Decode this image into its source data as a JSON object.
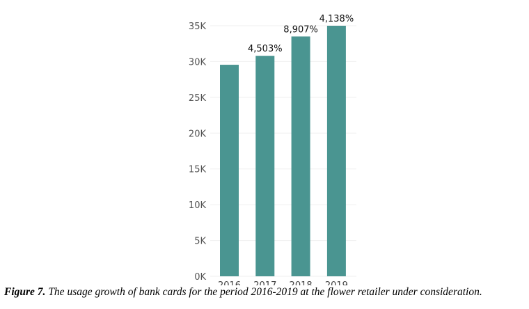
{
  "chart_data": {
    "type": "bar",
    "title": "",
    "xlabel": "",
    "ylabel": "",
    "categories": [
      "2016",
      "2017",
      "2018",
      "2019"
    ],
    "values": [
      29550,
      30800,
      33500,
      35000
    ],
    "data_labels": [
      "",
      "4,503%",
      "8,907%",
      "4,138%"
    ],
    "ylim": [
      0,
      35000
    ],
    "yticks": [
      0,
      5000,
      10000,
      15000,
      20000,
      25000,
      30000,
      35000
    ],
    "ytick_labels": [
      "0K",
      "5K",
      "10K",
      "15K",
      "20K",
      "25K",
      "30K",
      "35K"
    ],
    "grid": true,
    "bar_color": "#4a9591"
  },
  "caption": {
    "label": "Figure 7.",
    "text": " The usage growth of bank cards for the period 2016-2019 at the flower retailer under consideration."
  }
}
